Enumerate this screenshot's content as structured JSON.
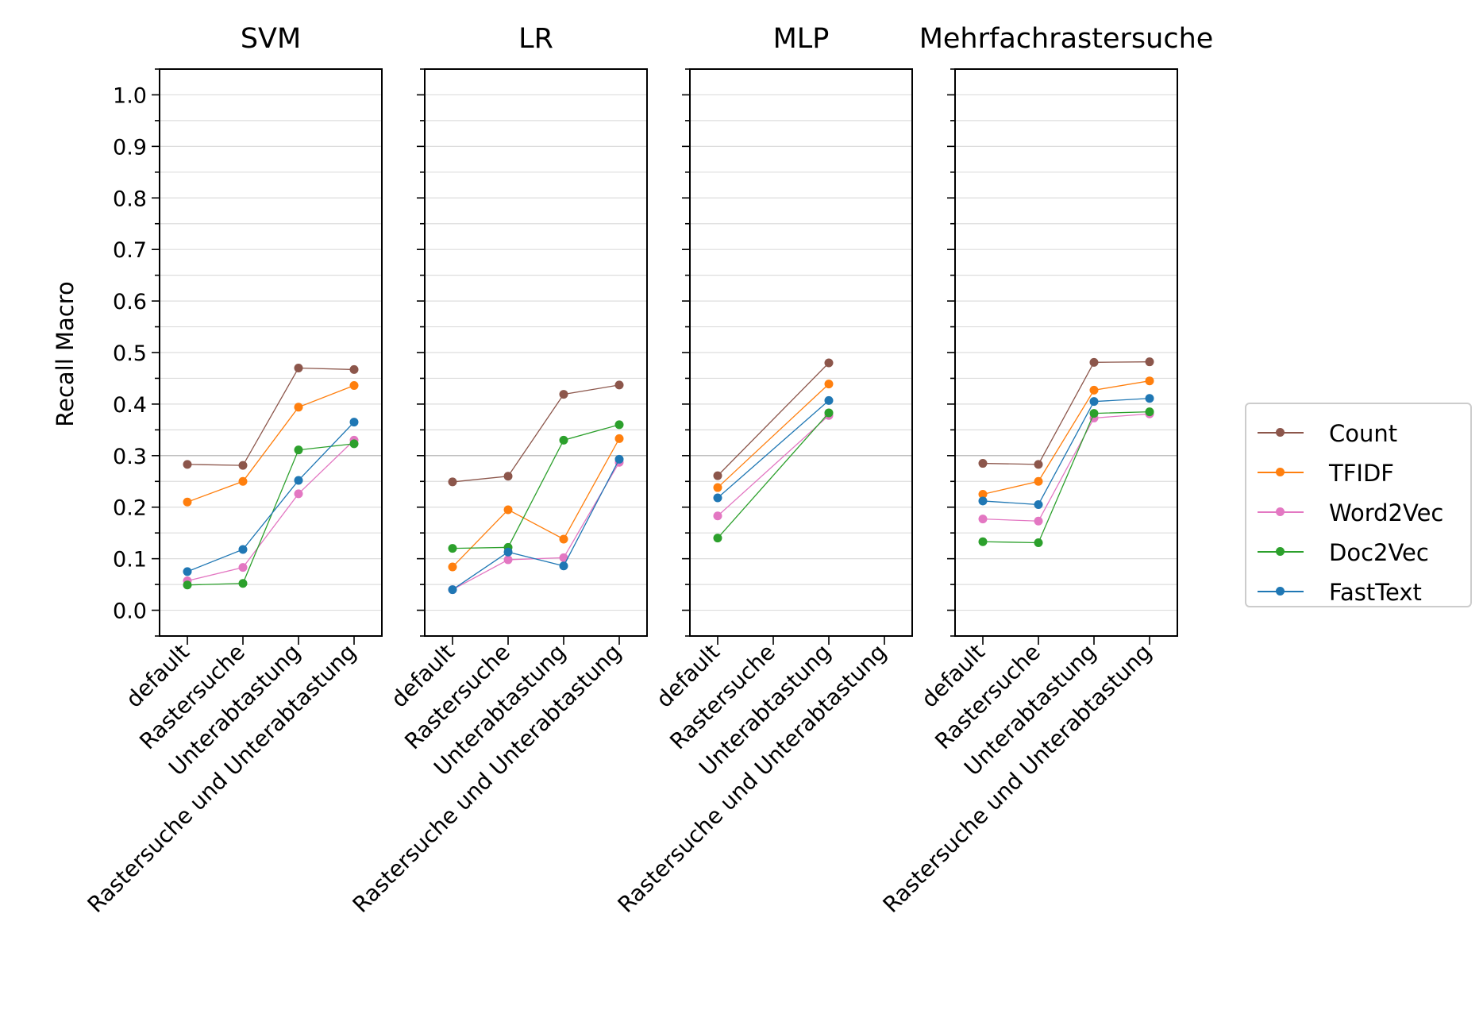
{
  "chart_data": {
    "type": "line",
    "ylabel": "Recall Macro",
    "ylim": [
      -0.05,
      1.05
    ],
    "yticks": [
      "0.0",
      "0.1",
      "0.2",
      "0.3",
      "0.4",
      "0.5",
      "0.6",
      "0.7",
      "0.8",
      "0.9",
      "1.0"
    ],
    "grid": true,
    "reference_line": 0.3,
    "legend_position": "right",
    "categories": [
      "default",
      "Rastersuche",
      "Unterabtastung",
      "Rastersuche und Unterabtastung"
    ],
    "series_style": [
      {
        "name": "Count",
        "color": "#8c564b"
      },
      {
        "name": "TFIDF",
        "color": "#ff7f0e"
      },
      {
        "name": "Word2Vec",
        "color": "#e377c2"
      },
      {
        "name": "Doc2Vec",
        "color": "#2ca02c"
      },
      {
        "name": "FastText",
        "color": "#1f77b4"
      }
    ],
    "panels": [
      {
        "title": "SVM",
        "series": [
          {
            "name": "Count",
            "values": [
              0.283,
              0.281,
              0.47,
              0.467
            ]
          },
          {
            "name": "TFIDF",
            "values": [
              0.21,
              0.25,
              0.394,
              0.436
            ]
          },
          {
            "name": "Word2Vec",
            "values": [
              0.057,
              0.083,
              0.226,
              0.33
            ]
          },
          {
            "name": "Doc2Vec",
            "values": [
              0.049,
              0.052,
              0.311,
              0.323
            ]
          },
          {
            "name": "FastText",
            "values": [
              0.075,
              0.118,
              0.252,
              0.365
            ]
          }
        ]
      },
      {
        "title": "LR",
        "series": [
          {
            "name": "Count",
            "values": [
              0.249,
              0.26,
              0.419,
              0.437
            ]
          },
          {
            "name": "TFIDF",
            "values": [
              0.084,
              0.195,
              0.138,
              0.333
            ]
          },
          {
            "name": "Word2Vec",
            "values": [
              0.04,
              0.098,
              0.102,
              0.287
            ]
          },
          {
            "name": "Doc2Vec",
            "values": [
              0.12,
              0.122,
              0.33,
              0.36
            ]
          },
          {
            "name": "FastText",
            "values": [
              0.04,
              0.113,
              0.086,
              0.293
            ]
          }
        ]
      },
      {
        "title": "MLP",
        "series": [
          {
            "name": "Count",
            "values": [
              0.261,
              null,
              0.48,
              null
            ]
          },
          {
            "name": "TFIDF",
            "values": [
              0.238,
              null,
              0.439,
              null
            ]
          },
          {
            "name": "Word2Vec",
            "values": [
              0.183,
              null,
              0.378,
              null
            ]
          },
          {
            "name": "Doc2Vec",
            "values": [
              0.14,
              null,
              0.383,
              null
            ]
          },
          {
            "name": "FastText",
            "values": [
              0.218,
              null,
              0.407,
              null
            ]
          }
        ]
      },
      {
        "title": "Mehrfachrastersuche",
        "series": [
          {
            "name": "Count",
            "values": [
              0.285,
              0.283,
              0.481,
              0.482
            ]
          },
          {
            "name": "TFIDF",
            "values": [
              0.225,
              0.25,
              0.427,
              0.445
            ]
          },
          {
            "name": "Word2Vec",
            "values": [
              0.177,
              0.173,
              0.373,
              0.381
            ]
          },
          {
            "name": "Doc2Vec",
            "values": [
              0.133,
              0.131,
              0.382,
              0.385
            ]
          },
          {
            "name": "FastText",
            "values": [
              0.212,
              0.205,
              0.405,
              0.411
            ]
          }
        ]
      }
    ]
  }
}
